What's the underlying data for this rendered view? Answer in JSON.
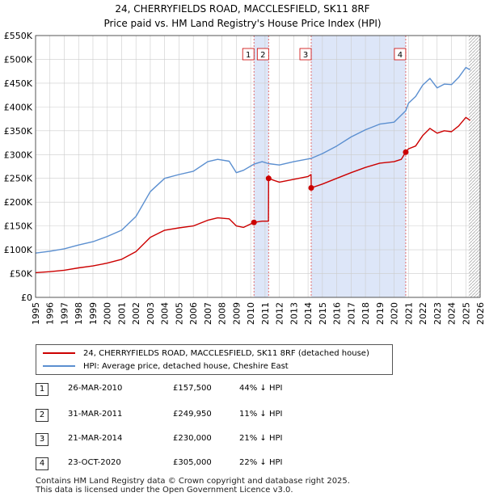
{
  "title_line1": "24, CHERRYFIELDS ROAD, MACCLESFIELD, SK11 8RF",
  "title_line2": "Price paid vs. HM Land Registry's House Price Index (HPI)",
  "colors": {
    "property": "#cc0000",
    "hpi": "#5b8fd0",
    "shade": "#dde6f8",
    "grid": "#cccccc",
    "vline": "#e06060"
  },
  "chart_data": {
    "type": "line",
    "title": "Price paid vs. HM Land Registry's House Price Index (HPI)",
    "xlabel": "",
    "ylabel": "",
    "xlim": [
      1995,
      2026
    ],
    "ylim": [
      0,
      550000
    ],
    "yticks": [
      0,
      50000,
      100000,
      150000,
      200000,
      250000,
      300000,
      350000,
      400000,
      450000,
      500000,
      550000
    ],
    "ytick_labels": [
      "£0",
      "£50K",
      "£100K",
      "£150K",
      "£200K",
      "£250K",
      "£300K",
      "£350K",
      "£400K",
      "£450K",
      "£500K",
      "£550K"
    ],
    "xticks": [
      1995,
      1996,
      1997,
      1998,
      1999,
      2000,
      2001,
      2002,
      2003,
      2004,
      2005,
      2006,
      2007,
      2008,
      2009,
      2010,
      2011,
      2012,
      2013,
      2014,
      2015,
      2016,
      2017,
      2018,
      2019,
      2020,
      2021,
      2022,
      2023,
      2024,
      2025,
      2026
    ],
    "shaded_regions": [
      [
        2010.23,
        2011.25
      ],
      [
        2014.22,
        2020.81
      ]
    ],
    "hatched_from": 2025.2,
    "series": [
      {
        "name": "24, CHERRYFIELDS ROAD, MACCLESFIELD, SK11 8RF (detached house)",
        "x": [
          1995,
          1996,
          1997,
          1998,
          1999,
          2000,
          2001,
          2002,
          2003,
          2004,
          2005,
          2006,
          2007,
          2007.7,
          2008.5,
          2009.0,
          2009.5,
          2010.23,
          2010.8,
          2011.24,
          2011.25,
          2011.7,
          2012,
          2013,
          2014.0,
          2014.21,
          2014.22,
          2015,
          2016,
          2017,
          2018,
          2019,
          2020,
          2020.5,
          2020.81,
          2021,
          2021.5,
          2022,
          2022.5,
          2023,
          2023.5,
          2024,
          2024.5,
          2025.0,
          2025.3
        ],
        "y": [
          52000,
          54000,
          57000,
          62000,
          66000,
          72000,
          80000,
          96000,
          126000,
          141000,
          146000,
          150000,
          162000,
          167000,
          165000,
          150000,
          147000,
          157500,
          160000,
          160000,
          249950,
          245000,
          242000,
          248000,
          254000,
          258000,
          230000,
          238000,
          250000,
          262000,
          273000,
          282000,
          285000,
          290000,
          305000,
          312000,
          318000,
          340000,
          355000,
          345000,
          350000,
          348000,
          360000,
          378000,
          372000
        ]
      },
      {
        "name": "HPI: Average price, detached house, Cheshire East",
        "x": [
          1995,
          1996,
          1997,
          1998,
          1999,
          2000,
          2001,
          2002,
          2003,
          2004,
          2005,
          2006,
          2007,
          2007.7,
          2008.5,
          2009.0,
          2009.5,
          2010.23,
          2010.8,
          2011.25,
          2012,
          2013,
          2014.22,
          2015,
          2016,
          2017,
          2018,
          2019,
          2020,
          2020.81,
          2021,
          2021.5,
          2022,
          2022.5,
          2023,
          2023.5,
          2024,
          2024.5,
          2025.0,
          2025.3
        ],
        "y": [
          93000,
          97000,
          102000,
          110000,
          117000,
          128000,
          141000,
          170000,
          222000,
          250000,
          258000,
          265000,
          285000,
          290000,
          286000,
          262000,
          267000,
          280000,
          285000,
          281000,
          278000,
          285000,
          292000,
          302000,
          318000,
          337000,
          352000,
          364000,
          368000,
          392000,
          408000,
          422000,
          446000,
          460000,
          440000,
          448000,
          447000,
          462000,
          483000,
          478000
        ]
      }
    ],
    "markers": [
      {
        "label": "1",
        "x": 2010.23,
        "y": 157500
      },
      {
        "label": "2",
        "x": 2011.25,
        "y": 249950
      },
      {
        "label": "3",
        "x": 2014.22,
        "y": 230000
      },
      {
        "label": "4",
        "x": 2020.81,
        "y": 305000
      }
    ]
  },
  "legend": {
    "property_label": "24, CHERRYFIELDS ROAD, MACCLESFIELD, SK11 8RF (detached house)",
    "hpi_label": "HPI: Average price, detached house, Cheshire East"
  },
  "transactions": [
    {
      "num": "1",
      "date": "26-MAR-2010",
      "price": "£157,500",
      "hpi": "44% ↓ HPI"
    },
    {
      "num": "2",
      "date": "31-MAR-2011",
      "price": "£249,950",
      "hpi": "11% ↓ HPI"
    },
    {
      "num": "3",
      "date": "21-MAR-2014",
      "price": "£230,000",
      "hpi": "21% ↓ HPI"
    },
    {
      "num": "4",
      "date": "23-OCT-2020",
      "price": "£305,000",
      "hpi": "22% ↓ HPI"
    }
  ],
  "footer_line1": "Contains HM Land Registry data © Crown copyright and database right 2025.",
  "footer_line2": "This data is licensed under the Open Government Licence v3.0."
}
